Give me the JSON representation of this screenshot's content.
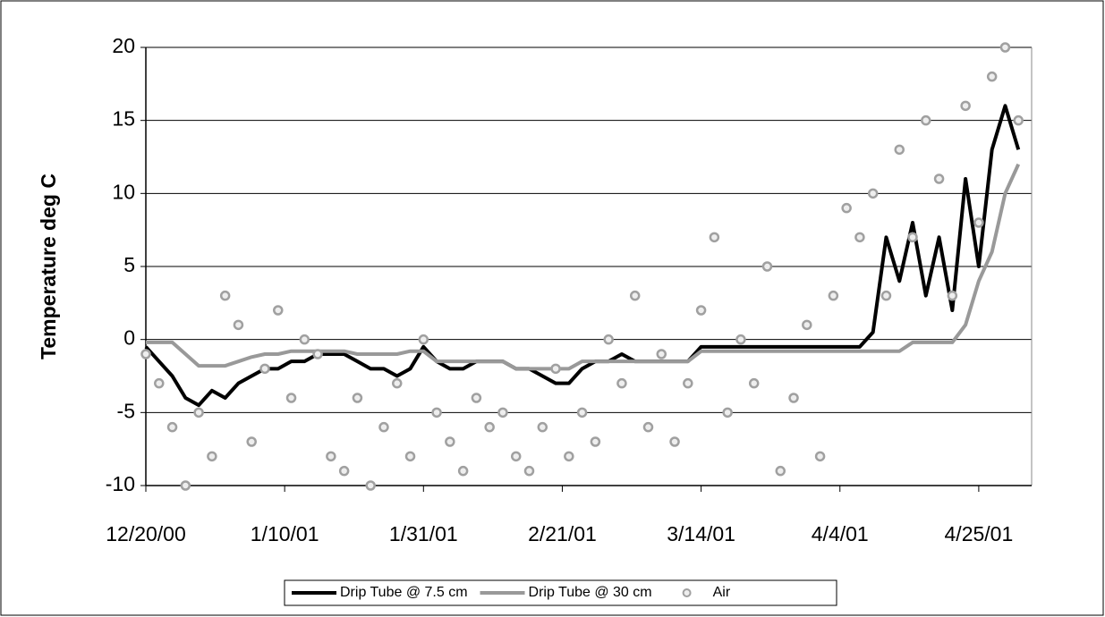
{
  "chart_data": {
    "type": "line_scatter",
    "ylabel": "Temperature deg C",
    "x": [
      "12/20/00",
      "12/22/00",
      "12/24/00",
      "12/26/00",
      "12/28/00",
      "12/30/00",
      "1/1/01",
      "1/3/01",
      "1/5/01",
      "1/7/01",
      "1/9/01",
      "1/11/01",
      "1/13/01",
      "1/15/01",
      "1/17/01",
      "1/19/01",
      "1/21/01",
      "1/23/01",
      "1/25/01",
      "1/27/01",
      "1/29/01",
      "1/31/01",
      "2/2/01",
      "2/4/01",
      "2/6/01",
      "2/8/01",
      "2/10/01",
      "2/12/01",
      "2/14/01",
      "2/16/01",
      "2/18/01",
      "2/20/01",
      "2/22/01",
      "2/24/01",
      "2/26/01",
      "2/28/01",
      "3/2/01",
      "3/4/01",
      "3/6/01",
      "3/8/01",
      "3/10/01",
      "3/12/01",
      "3/14/01",
      "3/16/01",
      "3/18/01",
      "3/20/01",
      "3/22/01",
      "3/24/01",
      "3/26/01",
      "3/28/01",
      "3/30/01",
      "4/1/01",
      "4/3/01",
      "4/5/01",
      "4/7/01",
      "4/9/01",
      "4/11/01",
      "4/13/01",
      "4/15/01",
      "4/17/01",
      "4/19/01",
      "4/21/01",
      "4/23/01",
      "4/25/01",
      "4/27/01",
      "4/29/01",
      "5/1/01"
    ],
    "series": [
      {
        "name": "Drip Tube @ 7.5 cm",
        "kind": "line",
        "color": "#000000",
        "width": 4,
        "values": [
          -0.5,
          -1.5,
          -2.5,
          -4,
          -4.5,
          -3.5,
          -4,
          -3,
          -2.5,
          -2,
          -2,
          -1.5,
          -1.5,
          -1,
          -1,
          -1,
          -1.5,
          -2,
          -2,
          -2.5,
          -2,
          -0.5,
          -1.5,
          -2,
          -2,
          -1.5,
          -1.5,
          -1.5,
          -2,
          -2,
          -2.5,
          -3,
          -3,
          -2,
          -1.5,
          -1.5,
          -1,
          -1.5,
          -1.5,
          -1.5,
          -1.5,
          -1.5,
          -0.5,
          -0.5,
          -0.5,
          -0.5,
          -0.5,
          -0.5,
          -0.5,
          -0.5,
          -0.5,
          -0.5,
          -0.5,
          -0.5,
          -0.5,
          0.5,
          7,
          4,
          8,
          3,
          7,
          2,
          11,
          5,
          13,
          16,
          13
        ]
      },
      {
        "name": "Drip Tube @ 30 cm",
        "kind": "line",
        "color": "#999999",
        "width": 4,
        "values": [
          -0.2,
          -0.2,
          -0.2,
          -1,
          -1.8,
          -1.8,
          -1.8,
          -1.5,
          -1.2,
          -1,
          -1,
          -0.8,
          -0.8,
          -0.8,
          -0.8,
          -0.8,
          -1,
          -1,
          -1,
          -1,
          -0.8,
          -0.8,
          -1.5,
          -1.5,
          -1.5,
          -1.5,
          -1.5,
          -1.5,
          -2,
          -2,
          -2,
          -2,
          -2,
          -1.5,
          -1.5,
          -1.5,
          -1.5,
          -1.5,
          -1.5,
          -1.5,
          -1.5,
          -1.5,
          -0.8,
          -0.8,
          -0.8,
          -0.8,
          -0.8,
          -0.8,
          -0.8,
          -0.8,
          -0.8,
          -0.8,
          -0.8,
          -0.8,
          -0.8,
          -0.8,
          -0.8,
          -0.8,
          -0.2,
          -0.2,
          -0.2,
          -0.2,
          1,
          4,
          6,
          10,
          12
        ]
      },
      {
        "name": "Air",
        "kind": "scatter",
        "color": "#a0a0a0",
        "values": [
          -1,
          -3,
          -6,
          -10,
          -5,
          -8,
          3,
          1,
          -7,
          -2,
          2,
          -4,
          0,
          -1,
          -8,
          -9,
          -4,
          -10,
          -6,
          -3,
          -8,
          0,
          -5,
          -7,
          -9,
          -4,
          -6,
          -5,
          -8,
          -9,
          -6,
          -2,
          -8,
          -5,
          -7,
          0,
          -3,
          3,
          -6,
          -1,
          -7,
          -3,
          2,
          7,
          -5,
          0,
          -3,
          5,
          -9,
          -4,
          1,
          -8,
          3,
          9,
          7,
          10,
          3,
          13,
          7,
          15,
          11,
          3,
          16,
          8,
          18,
          20,
          15
        ]
      }
    ],
    "xlim": [
      "12/20/00",
      "5/3/01"
    ],
    "xticks": [
      "12/20/00",
      "1/10/01",
      "1/31/01",
      "2/21/01",
      "3/14/01",
      "4/4/01",
      "4/25/01"
    ],
    "ylim": [
      -10,
      20
    ],
    "yticks": [
      -10,
      -5,
      0,
      5,
      10,
      15,
      20
    ],
    "grid": true,
    "legend": "bottom"
  }
}
